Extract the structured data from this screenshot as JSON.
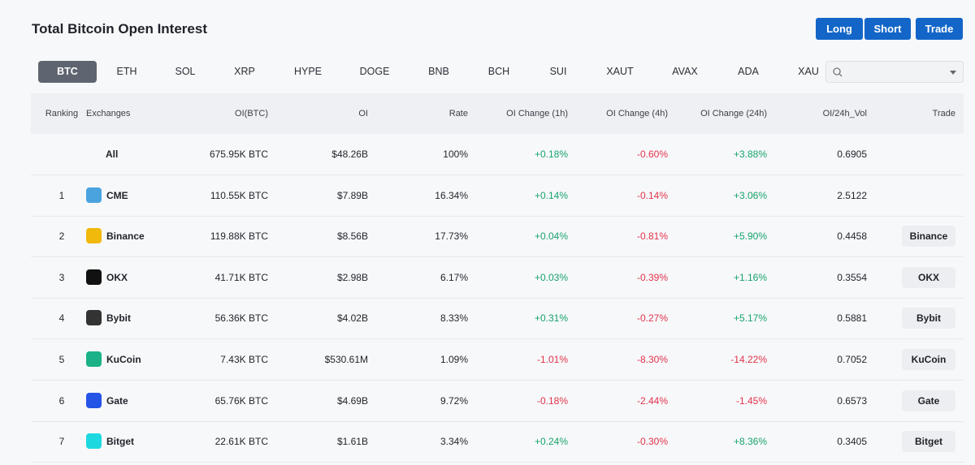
{
  "header": {
    "title": "Total Bitcoin Open Interest",
    "buttons": [
      "Long",
      "Short",
      "Trade"
    ]
  },
  "tabs": {
    "items": [
      "BTC",
      "ETH",
      "SOL",
      "XRP",
      "HYPE",
      "DOGE",
      "BNB",
      "BCH",
      "SUI",
      "XAUT",
      "AVAX",
      "ADA",
      "XAU"
    ],
    "selected": 0
  },
  "table": {
    "columns": [
      "Ranking",
      "Exchanges",
      "OI(BTC)",
      "OI",
      "Rate",
      "OI Change (1h)",
      "OI Change (4h)",
      "OI Change (24h)",
      "OI/24h_Vol",
      "Trade"
    ],
    "rows": [
      {
        "exchange": "All",
        "oi_btc": "675.95K BTC",
        "oi": "$48.26B",
        "rate": "100%",
        "change_1h": "+0.18%",
        "change_4h": "-0.60%",
        "change_24h": "+3.88%",
        "oi_24h_vol": "0.6905"
      },
      {
        "rank": "1",
        "exchange": "CME",
        "oi_btc": "110.55K BTC",
        "oi": "$7.89B",
        "rate": "16.34%",
        "change_1h": "+0.14%",
        "change_4h": "-0.14%",
        "change_24h": "+3.06%",
        "oi_24h_vol": "2.5122"
      },
      {
        "rank": "2",
        "exchange": "Binance",
        "oi_btc": "119.88K BTC",
        "oi": "$8.56B",
        "rate": "17.73%",
        "change_1h": "+0.04%",
        "change_4h": "-0.81%",
        "change_24h": "+5.90%",
        "oi_24h_vol": "0.4458",
        "trade": "Binance"
      },
      {
        "rank": "3",
        "exchange": "OKX",
        "oi_btc": "41.71K BTC",
        "oi": "$2.98B",
        "rate": "6.17%",
        "change_1h": "+0.03%",
        "change_4h": "-0.39%",
        "change_24h": "+1.16%",
        "oi_24h_vol": "0.3554",
        "trade": "OKX"
      },
      {
        "rank": "4",
        "exchange": "Bybit",
        "oi_btc": "56.36K BTC",
        "oi": "$4.02B",
        "rate": "8.33%",
        "change_1h": "+0.31%",
        "change_4h": "-0.27%",
        "change_24h": "+5.17%",
        "oi_24h_vol": "0.5881",
        "trade": "Bybit"
      },
      {
        "rank": "5",
        "exchange": "KuCoin",
        "oi_btc": "7.43K BTC",
        "oi": "$530.61M",
        "rate": "1.09%",
        "change_1h": "-1.01%",
        "change_4h": "-8.30%",
        "change_24h": "-14.22%",
        "oi_24h_vol": "0.7052",
        "trade": "KuCoin"
      },
      {
        "rank": "6",
        "exchange": "Gate",
        "oi_btc": "65.76K BTC",
        "oi": "$4.69B",
        "rate": "9.72%",
        "change_1h": "-0.18%",
        "change_4h": "-2.44%",
        "change_24h": "-1.45%",
        "oi_24h_vol": "0.6573",
        "trade": "Gate"
      },
      {
        "rank": "7",
        "exchange": "Bitget",
        "oi_btc": "22.61K BTC",
        "oi": "$1.61B",
        "rate": "3.34%",
        "change_1h": "+0.24%",
        "change_4h": "-0.30%",
        "change_24h": "+8.36%",
        "oi_24h_vol": "0.3405",
        "trade": "Bitget"
      }
    ]
  }
}
